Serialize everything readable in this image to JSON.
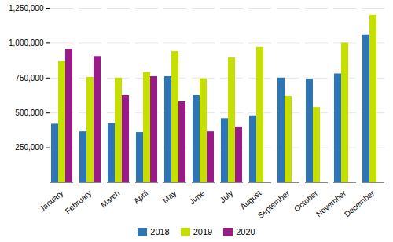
{
  "chart_data": {
    "type": "bar",
    "categories": [
      "January",
      "February",
      "March",
      "April",
      "May",
      "June",
      "July",
      "August",
      "September",
      "October",
      "November",
      "December"
    ],
    "series": [
      {
        "name": "2018",
        "color": "#2e75b6",
        "values": [
          420000,
          365000,
          425000,
          360000,
          760000,
          625000,
          460000,
          480000,
          750000,
          740000,
          780000,
          1060000
        ]
      },
      {
        "name": "2019",
        "color": "#c5e000",
        "values": [
          870000,
          755000,
          750000,
          790000,
          940000,
          745000,
          895000,
          970000,
          620000,
          540000,
          1000000,
          1200000
        ]
      },
      {
        "name": "2020",
        "color": "#9b1a8a",
        "values": [
          955000,
          905000,
          625000,
          760000,
          580000,
          365000,
          400000,
          null,
          null,
          null,
          null,
          null
        ]
      }
    ],
    "ylim": [
      0,
      1250000
    ],
    "yticks": [
      {
        "value": 250000,
        "label": "250,000"
      },
      {
        "value": 500000,
        "label": "500,000"
      },
      {
        "value": 750000,
        "label": "750,000"
      },
      {
        "value": 1000000,
        "label": "1,000,000"
      },
      {
        "value": 1250000,
        "label": "1,250,000"
      }
    ],
    "grid": true,
    "legend": "bottom"
  }
}
